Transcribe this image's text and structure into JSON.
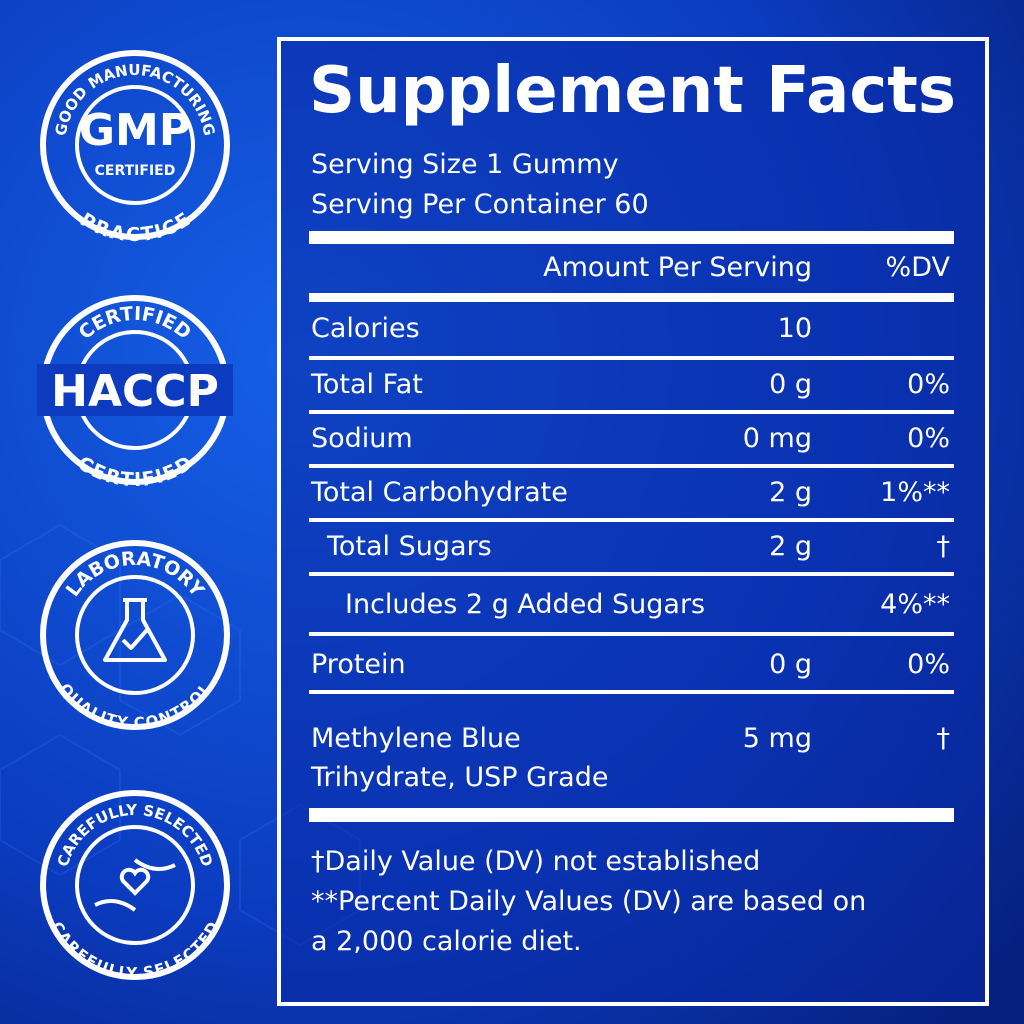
{
  "badges": [
    {
      "top": "GOOD MANUFACTURING",
      "main": "GMP",
      "sub": "CERTIFIED",
      "bottom": "PRACTICE"
    },
    {
      "top": "CERTIFIED",
      "main": "HACCP",
      "bottom": "CERTIFIED"
    },
    {
      "top": "LABORATORY",
      "bottom": "QUALITY CONTROL"
    },
    {
      "top": "CAREFULLY SELECTED",
      "bottom": "CAREFULLY SELECTED"
    }
  ],
  "facts": {
    "title": "Supplement Facts",
    "serving_size": "Serving Size 1 Gummy",
    "servings_per_container": "Serving Per Container 60",
    "header": {
      "amount": "Amount Per Serving",
      "dv": "%DV"
    },
    "rows": [
      {
        "name": [
          "Calories"
        ],
        "amount": "10"
      },
      {
        "name": [
          "Total Fat"
        ],
        "amount": "0 g",
        "dv": "0%"
      },
      {
        "name": [
          "Sodium"
        ],
        "amount": "0 mg",
        "dv": "0%"
      },
      {
        "name": [
          "Total Carbohydrate"
        ],
        "amount": "2 g",
        "dv": "1%**"
      },
      {
        "name": [
          "Total Sugars"
        ],
        "amount": "2 g",
        "dv": "†"
      },
      {
        "name": [
          "Includes 2 g Added Sugars"
        ],
        "dv": "4%**"
      },
      {
        "name": [
          "Protein"
        ],
        "amount": "0 g",
        "dv": "0%"
      },
      {
        "name": [
          "Methylene Blue",
          "Trihydrate, USP Grade"
        ],
        "amount": "5 mg",
        "dv": "†"
      }
    ],
    "footnotes": [
      "†Daily Value (DV) not established",
      "**Percent Daily Values (DV) are based on",
      "a 2,000 calorie diet."
    ]
  }
}
